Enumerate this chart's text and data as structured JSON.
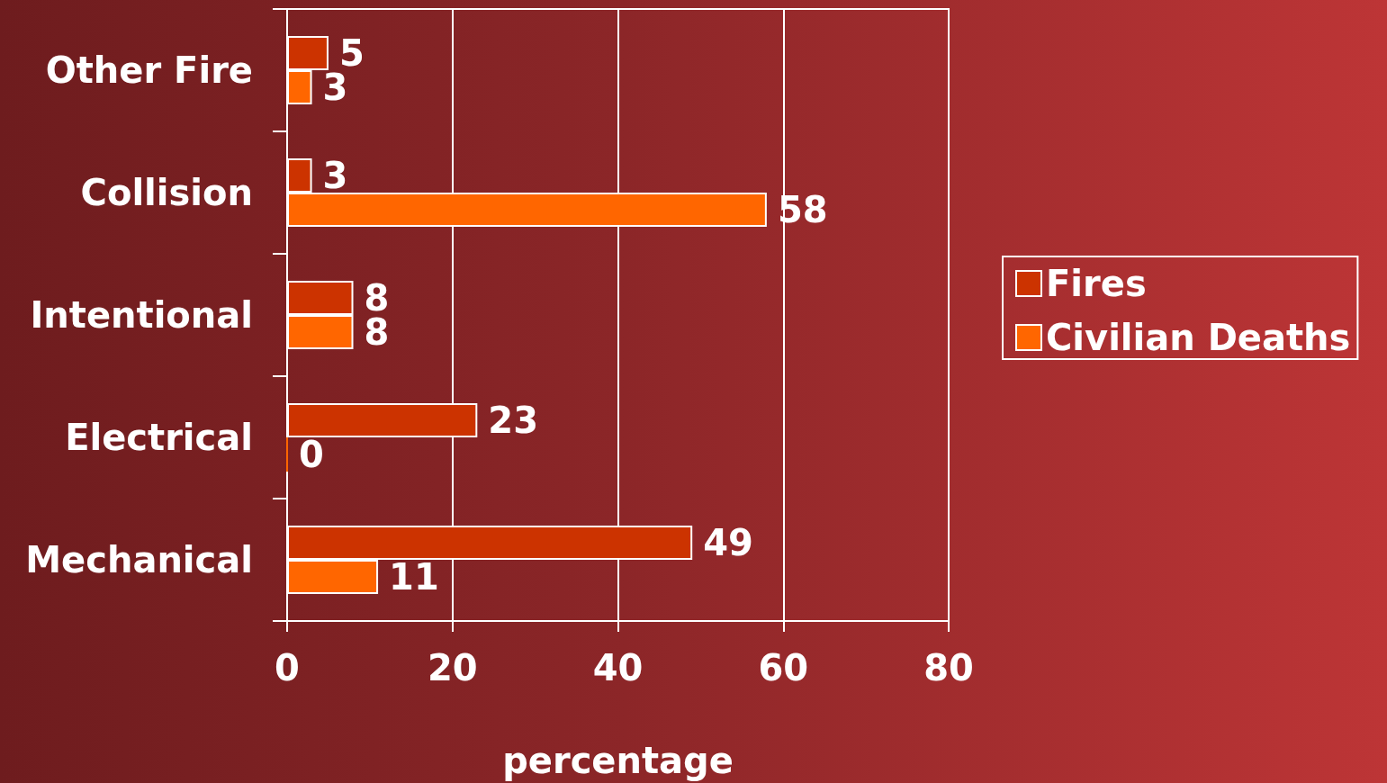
{
  "chart_data": {
    "type": "bar",
    "orientation": "horizontal",
    "xlabel": "percentage",
    "categories": [
      "Other Fire",
      "Collision",
      "Intentional",
      "Electrical",
      "Mechanical"
    ],
    "series": [
      {
        "name": "Fires",
        "color": "#cc3300",
        "values": [
          5,
          3,
          8,
          23,
          49
        ]
      },
      {
        "name": "Civilian Deaths",
        "color": "#ff6600",
        "values": [
          3,
          58,
          8,
          0,
          11
        ]
      }
    ],
    "xlim": [
      0,
      80
    ],
    "xticks": [
      0,
      20,
      40,
      60,
      80
    ],
    "grid": "x",
    "legend": "right",
    "data_labels": true
  }
}
